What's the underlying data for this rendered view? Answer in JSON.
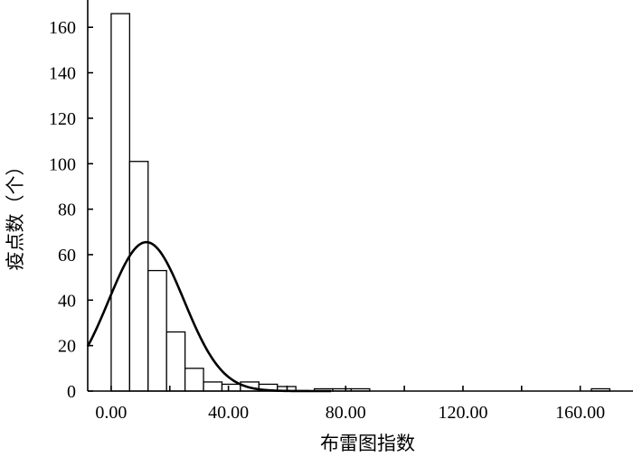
{
  "chart_data": {
    "type": "bar",
    "title": "",
    "xlabel": "布雷图指数",
    "ylabel": "疫点数（个）",
    "xlim": [
      -8,
      178
    ],
    "ylim": [
      0,
      172
    ],
    "x_ticks": [
      0,
      40,
      80,
      120,
      160
    ],
    "x_tick_labels": [
      "0.00",
      "40.00",
      "80.00",
      "120.00",
      "160.00"
    ],
    "x_minor_ticks": [
      20,
      60,
      100,
      140
    ],
    "y_ticks": [
      0,
      20,
      40,
      60,
      80,
      100,
      120,
      140,
      160
    ],
    "y_tick_labels": [
      "0",
      "20",
      "40",
      "60",
      "80",
      "100",
      "120",
      "140",
      "160"
    ],
    "bin_width": 6.3,
    "bins": [
      {
        "x_start": 0.0,
        "x_end": 6.3,
        "count": 166
      },
      {
        "x_start": 6.3,
        "x_end": 12.6,
        "count": 101
      },
      {
        "x_start": 12.6,
        "x_end": 18.9,
        "count": 53
      },
      {
        "x_start": 18.9,
        "x_end": 25.2,
        "count": 26
      },
      {
        "x_start": 25.2,
        "x_end": 31.5,
        "count": 10
      },
      {
        "x_start": 31.5,
        "x_end": 37.8,
        "count": 4
      },
      {
        "x_start": 37.8,
        "x_end": 44.1,
        "count": 3
      },
      {
        "x_start": 44.1,
        "x_end": 50.4,
        "count": 4
      },
      {
        "x_start": 50.4,
        "x_end": 56.7,
        "count": 3
      },
      {
        "x_start": 56.7,
        "x_end": 63.0,
        "count": 2
      },
      {
        "x_start": 63.0,
        "x_end": 69.3,
        "count": 0
      },
      {
        "x_start": 69.3,
        "x_end": 75.6,
        "count": 1
      },
      {
        "x_start": 75.6,
        "x_end": 81.9,
        "count": 1
      },
      {
        "x_start": 81.9,
        "x_end": 88.2,
        "count": 1
      },
      {
        "x_start": 163.8,
        "x_end": 170.1,
        "count": 1
      }
    ],
    "normal_curve": {
      "peak_x": 12,
      "peak_y": 65.5,
      "sigma": 12.9
    }
  }
}
